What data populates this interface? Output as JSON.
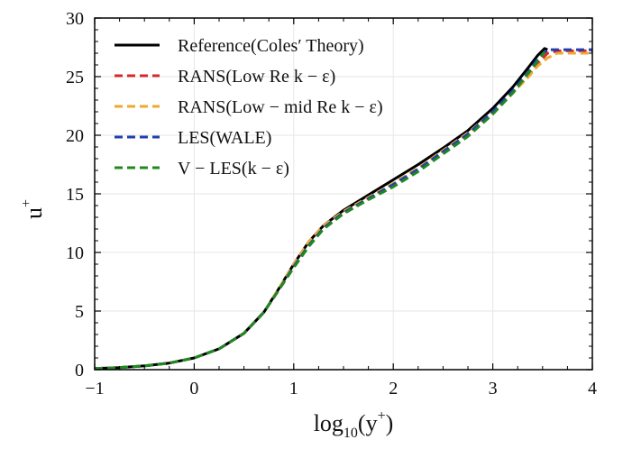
{
  "chart_data": {
    "type": "line",
    "xlim": [
      -1,
      4
    ],
    "ylim": [
      0,
      30
    ],
    "x_ticks": [
      "−1",
      "0",
      "1",
      "2",
      "3",
      "4"
    ],
    "y_ticks": [
      "0",
      "5",
      "10",
      "15",
      "20",
      "25",
      "30"
    ],
    "xlabel": {
      "main": "log",
      "sub": "10",
      "open": "(y",
      "sup": "+",
      "close": ")"
    },
    "ylabel": {
      "main": "u",
      "sup": "+"
    },
    "grid": true,
    "legend_position": "top-left",
    "series": [
      {
        "name": "Reference(Coles′ Theory)",
        "color": "#000000",
        "dash": "solid",
        "points": [
          [
            -1,
            0.1
          ],
          [
            -0.75,
            0.18
          ],
          [
            -0.5,
            0.32
          ],
          [
            -0.25,
            0.56
          ],
          [
            0,
            1.0
          ],
          [
            0.25,
            1.78
          ],
          [
            0.5,
            3.1
          ],
          [
            0.7,
            4.9
          ],
          [
            0.85,
            6.9
          ],
          [
            1.0,
            9.0
          ],
          [
            1.15,
            10.9
          ],
          [
            1.3,
            12.3
          ],
          [
            1.5,
            13.6
          ],
          [
            1.75,
            14.9
          ],
          [
            2.0,
            16.2
          ],
          [
            2.25,
            17.5
          ],
          [
            2.5,
            18.9
          ],
          [
            2.75,
            20.4
          ],
          [
            3.0,
            22.3
          ],
          [
            3.2,
            24.1
          ],
          [
            3.35,
            25.7
          ],
          [
            3.45,
            26.8
          ],
          [
            3.52,
            27.4
          ],
          [
            3.55,
            27.3
          ]
        ]
      },
      {
        "name": "RANS(Low Re k − ε)",
        "color": "#d62728",
        "dash": "dashed",
        "points": [
          [
            -1,
            0.1
          ],
          [
            -0.75,
            0.18
          ],
          [
            -0.5,
            0.32
          ],
          [
            -0.25,
            0.56
          ],
          [
            0,
            1.0
          ],
          [
            0.25,
            1.78
          ],
          [
            0.5,
            3.1
          ],
          [
            0.7,
            4.9
          ],
          [
            0.85,
            6.8
          ],
          [
            1.0,
            8.8
          ],
          [
            1.15,
            10.6
          ],
          [
            1.3,
            12.1
          ],
          [
            1.5,
            13.4
          ],
          [
            1.75,
            14.6
          ],
          [
            2.0,
            15.8
          ],
          [
            2.25,
            17.1
          ],
          [
            2.5,
            18.6
          ],
          [
            2.75,
            20.1
          ],
          [
            3.0,
            21.9
          ],
          [
            3.2,
            23.6
          ],
          [
            3.35,
            25.0
          ],
          [
            3.45,
            26.1
          ],
          [
            3.55,
            27.0
          ],
          [
            3.65,
            27.2
          ],
          [
            4.0,
            27.2
          ]
        ]
      },
      {
        "name": "RANS(Low − mid Re k − ε)",
        "color": "#f0a830",
        "dash": "dashed",
        "points": [
          [
            -1,
            0.1
          ],
          [
            -0.75,
            0.18
          ],
          [
            -0.5,
            0.32
          ],
          [
            -0.25,
            0.56
          ],
          [
            0,
            1.0
          ],
          [
            0.25,
            1.78
          ],
          [
            0.5,
            3.1
          ],
          [
            0.7,
            4.9
          ],
          [
            0.85,
            6.9
          ],
          [
            1.0,
            9.0
          ],
          [
            1.15,
            10.9
          ],
          [
            1.3,
            12.3
          ],
          [
            1.5,
            13.5
          ],
          [
            1.75,
            14.7
          ],
          [
            2.0,
            15.9
          ],
          [
            2.25,
            17.2
          ],
          [
            2.5,
            18.7
          ],
          [
            2.75,
            20.2
          ],
          [
            3.0,
            22.0
          ],
          [
            3.2,
            23.6
          ],
          [
            3.35,
            24.9
          ],
          [
            3.45,
            25.9
          ],
          [
            3.55,
            26.6
          ],
          [
            3.65,
            27.0
          ],
          [
            4.0,
            27.0
          ]
        ]
      },
      {
        "name": "LES(WALE)",
        "color": "#1f3fb4",
        "dash": "dashed",
        "points": [
          [
            -1,
            0.1
          ],
          [
            -0.75,
            0.18
          ],
          [
            -0.5,
            0.32
          ],
          [
            -0.25,
            0.56
          ],
          [
            0,
            1.0
          ],
          [
            0.25,
            1.78
          ],
          [
            0.5,
            3.1
          ],
          [
            0.7,
            4.9
          ],
          [
            0.85,
            6.8
          ],
          [
            1.0,
            8.8
          ],
          [
            1.15,
            10.6
          ],
          [
            1.3,
            12.1
          ],
          [
            1.5,
            13.4
          ],
          [
            1.75,
            14.6
          ],
          [
            2.0,
            15.8
          ],
          [
            2.25,
            17.1
          ],
          [
            2.5,
            18.6
          ],
          [
            2.75,
            20.1
          ],
          [
            3.0,
            22.0
          ],
          [
            3.2,
            23.8
          ],
          [
            3.35,
            25.3
          ],
          [
            3.45,
            26.5
          ],
          [
            3.55,
            27.3
          ],
          [
            4.0,
            27.3
          ]
        ]
      },
      {
        "name": "V − LES(k − ε)",
        "color": "#1e8a1e",
        "dash": "dashed",
        "points": [
          [
            -1,
            0.1
          ],
          [
            -0.75,
            0.18
          ],
          [
            -0.5,
            0.32
          ],
          [
            -0.25,
            0.56
          ],
          [
            0,
            1.0
          ],
          [
            0.25,
            1.78
          ],
          [
            0.5,
            3.1
          ],
          [
            0.7,
            4.9
          ],
          [
            0.85,
            6.8
          ],
          [
            1.0,
            8.7
          ],
          [
            1.15,
            10.5
          ],
          [
            1.3,
            12.0
          ],
          [
            1.5,
            13.3
          ],
          [
            1.75,
            14.5
          ],
          [
            2.0,
            15.6
          ],
          [
            2.25,
            16.9
          ],
          [
            2.5,
            18.4
          ],
          [
            2.75,
            19.9
          ],
          [
            3.0,
            21.8
          ],
          [
            3.2,
            23.6
          ],
          [
            3.35,
            25.2
          ],
          [
            3.45,
            26.3
          ],
          [
            3.52,
            27.1
          ]
        ]
      }
    ]
  }
}
